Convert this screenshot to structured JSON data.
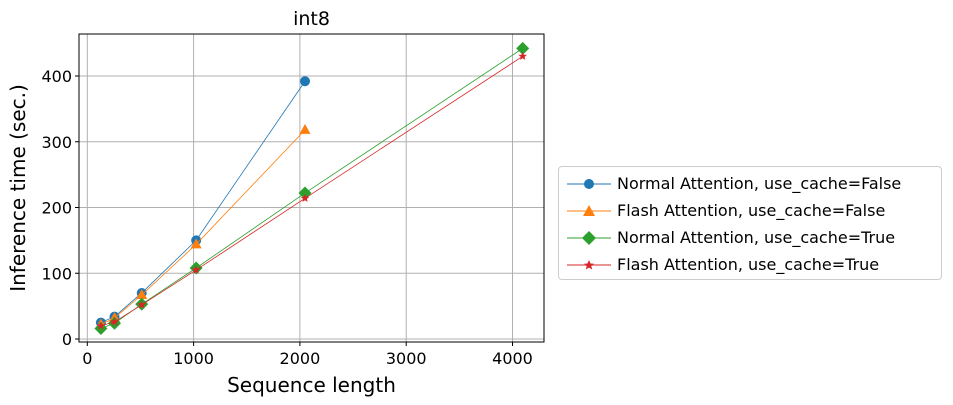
{
  "chart_data": {
    "type": "line",
    "title": "int8",
    "xlabel": "Sequence length",
    "ylabel": "Inference time (sec.)",
    "xlim": [
      -80,
      4300
    ],
    "ylim": [
      -5,
      465
    ],
    "xticks": [
      0,
      1000,
      2000,
      3000,
      4000
    ],
    "yticks": [
      0,
      100,
      200,
      300,
      400
    ],
    "grid": true,
    "legend_position": "outside right",
    "series": [
      {
        "name": "Normal Attention, use_cache=False",
        "color": "#1f77b4",
        "marker": "circle",
        "x": [
          128,
          256,
          512,
          1024,
          2048
        ],
        "y": [
          25,
          34,
          70,
          150,
          392
        ]
      },
      {
        "name": "Flash Attention, use_cache=False",
        "color": "#ff7f0e",
        "marker": "triangle",
        "x": [
          128,
          256,
          512,
          1024,
          2048
        ],
        "y": [
          22,
          32,
          67,
          144,
          318
        ]
      },
      {
        "name": "Normal Attention, use_cache=True",
        "color": "#2ca02c",
        "marker": "diamond",
        "x": [
          128,
          256,
          512,
          1024,
          2048,
          4096
        ],
        "y": [
          16,
          24,
          53,
          108,
          222,
          442
        ]
      },
      {
        "name": "Flash Attention, use_cache=True",
        "color": "#d62728",
        "marker": "star",
        "x": [
          128,
          256,
          512,
          1024,
          2048,
          4096
        ],
        "y": [
          20,
          26,
          52,
          105,
          214,
          430
        ]
      }
    ]
  },
  "legend": {
    "items": [
      {
        "label": "Normal Attention, use_cache=False"
      },
      {
        "label": "Flash Attention, use_cache=False"
      },
      {
        "label": "Normal Attention, use_cache=True"
      },
      {
        "label": "Flash Attention, use_cache=True"
      }
    ]
  }
}
